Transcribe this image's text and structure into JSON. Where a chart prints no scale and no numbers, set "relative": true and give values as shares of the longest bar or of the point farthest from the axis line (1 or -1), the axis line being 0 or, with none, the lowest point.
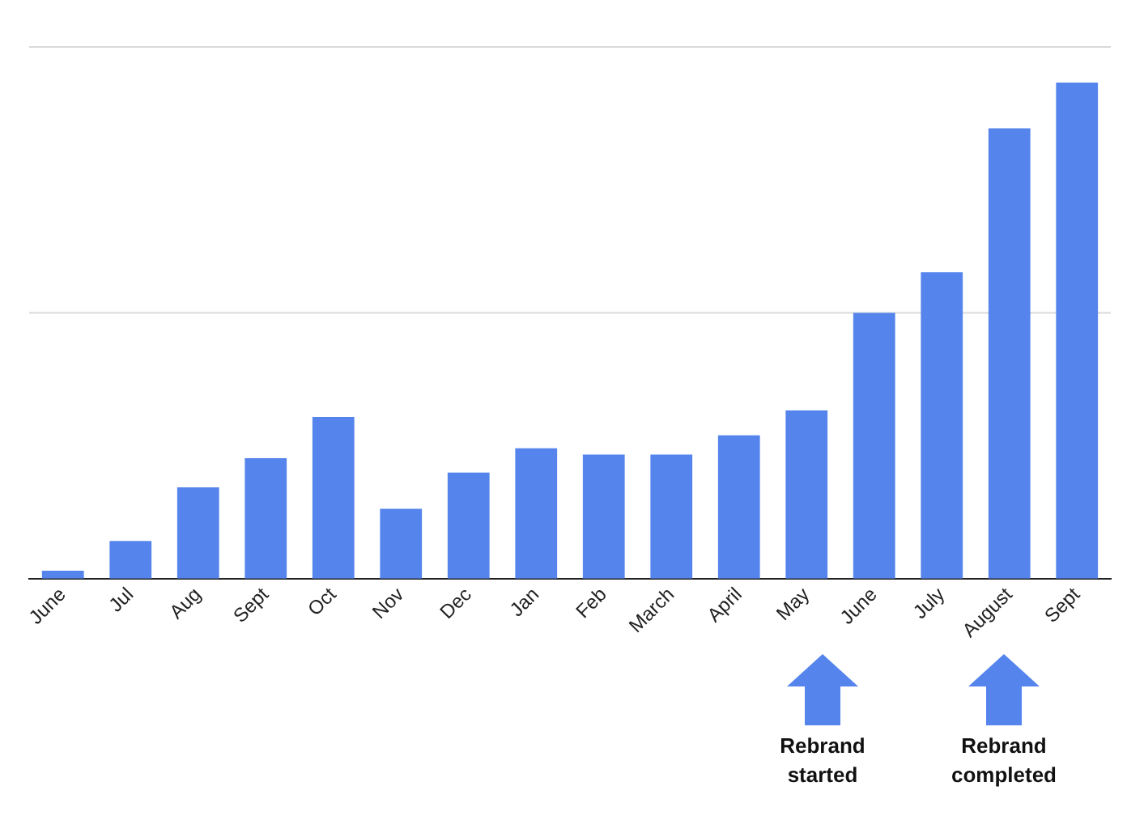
{
  "chart_data": {
    "type": "bar",
    "relative": true,
    "categories": [
      "June",
      "Jul",
      "Aug",
      "Sept",
      "Oct",
      "Nov",
      "Dec",
      "Jan",
      "Feb",
      "March",
      "April",
      "May",
      "June",
      "July",
      "August",
      "Sept"
    ],
    "series": [
      {
        "color": "#5585ec",
        "values": [
          0.016,
          0.076,
          0.184,
          0.243,
          0.326,
          0.141,
          0.214,
          0.263,
          0.25,
          0.25,
          0.289,
          0.339,
          0.536,
          0.618,
          0.908,
          1
        ]
      }
    ],
    "ref_lines": [
      {
        "axis": "y",
        "value": 0.536,
        "color": "#d9d9d9"
      },
      {
        "axis": "y",
        "value": 1.072,
        "color": "#d9d9d9"
      }
    ],
    "annotations": [
      "Rebrand started",
      "Rebrand completed"
    ]
  }
}
